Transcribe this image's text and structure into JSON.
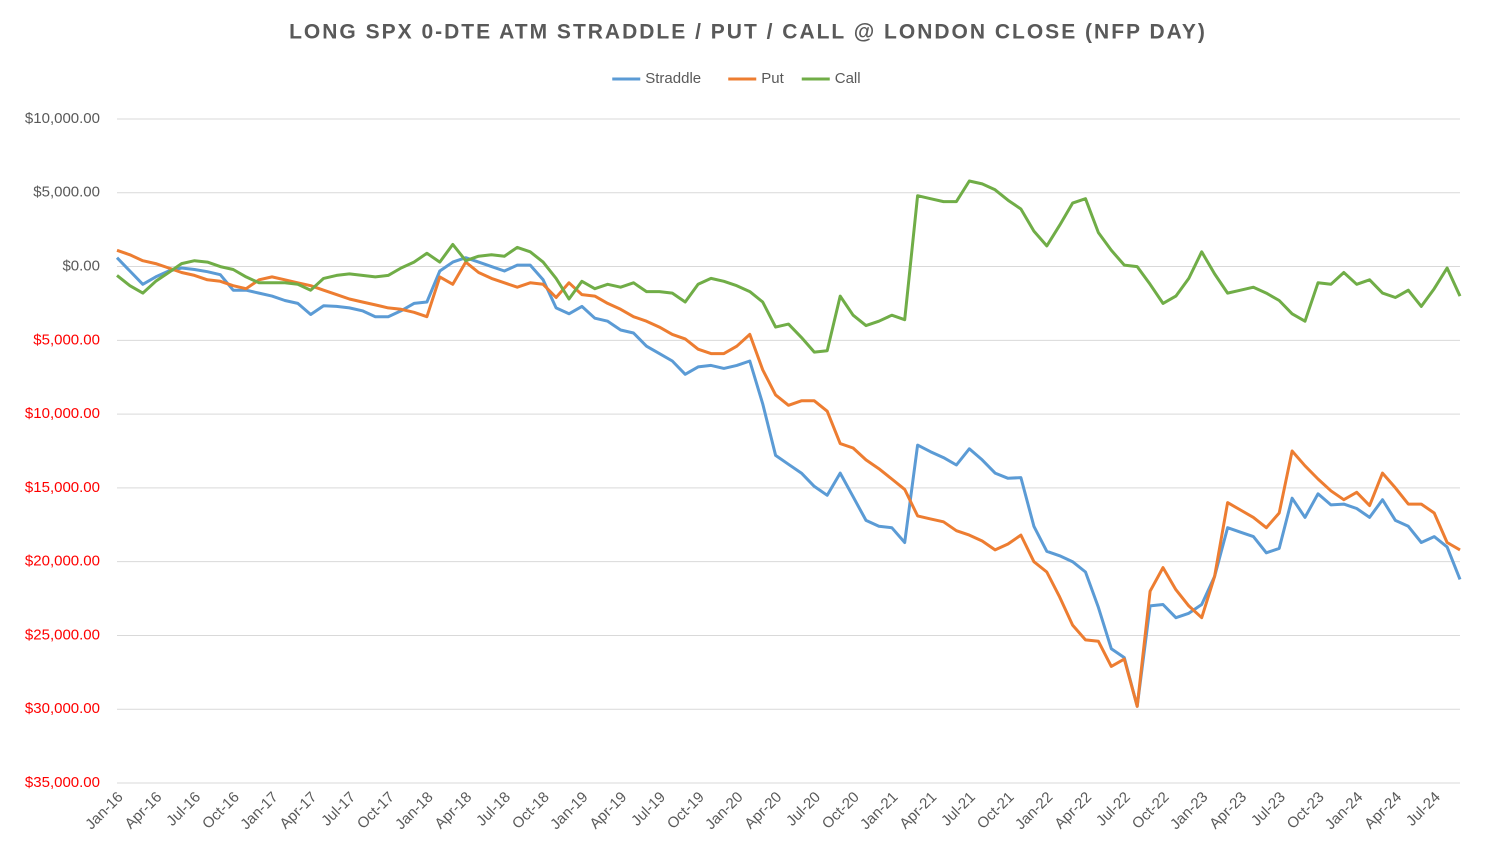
{
  "chart_data": {
    "type": "line",
    "title": "LONG SPX 0-DTE ATM STRADDLE / PUT / CALL @ LONDON CLOSE (NFP DAY)",
    "categories": [
      "Jan-16",
      null,
      null,
      "Apr-16",
      null,
      null,
      "Jul-16",
      null,
      null,
      "Oct-16",
      null,
      null,
      "Jan-17",
      null,
      null,
      "Apr-17",
      null,
      null,
      "Jul-17",
      null,
      null,
      "Oct-17",
      null,
      null,
      "Jan-18",
      null,
      null,
      "Apr-18",
      null,
      null,
      "Jul-18",
      null,
      null,
      "Oct-18",
      null,
      null,
      "Jan-19",
      null,
      null,
      "Apr-19",
      null,
      null,
      "Jul-19",
      null,
      null,
      "Oct-19",
      null,
      null,
      "Jan-20",
      null,
      null,
      "Apr-20",
      null,
      null,
      "Jul-20",
      null,
      null,
      "Oct-20",
      null,
      null,
      "Jan-21",
      null,
      null,
      "Apr-21",
      null,
      null,
      "Jul-21",
      null,
      null,
      "Oct-21",
      null,
      null,
      "Jan-22",
      null,
      null,
      "Apr-22",
      null,
      null,
      "Jul-22",
      null,
      null,
      "Oct-22",
      null,
      null,
      "Jan-23",
      null,
      null,
      "Apr-23",
      null,
      null,
      "Jul-23",
      null,
      null,
      "Oct-23",
      null,
      null,
      "Jan-24",
      null,
      null,
      "Apr-24",
      null,
      null,
      "Jul-24",
      null,
      null
    ],
    "series": [
      {
        "name": "Straddle",
        "color": "#5b9bd5",
        "values": [
          600,
          -300,
          -1200,
          -700,
          -300,
          -100,
          -200,
          -350,
          -550,
          -1600,
          -1600,
          -1800,
          -2000,
          -2300,
          -2500,
          -3250,
          -2650,
          -2700,
          -2800,
          -3000,
          -3400,
          -3400,
          -3000,
          -2500,
          -2400,
          -300,
          300,
          600,
          300,
          0,
          -300,
          100,
          100,
          -900,
          -2800,
          -3200,
          -2700,
          -3500,
          -3700,
          -4300,
          -4500,
          -5400,
          -5900,
          -6400,
          -7300,
          -6800,
          -6700,
          -6900,
          -6700,
          -6400,
          -9300,
          -12800,
          -13400,
          -14000,
          -14900,
          -15500,
          -14000,
          -15600,
          -17200,
          -17600,
          -17700,
          -18700,
          -12100,
          -12550,
          -12950,
          -13450,
          -12350,
          -13100,
          -14000,
          -14350,
          -14300,
          -17600,
          -19300,
          -19600,
          -20000,
          -20700,
          -23100,
          -25900,
          -26500,
          -29800,
          -23000,
          -22900,
          -23800,
          -23500,
          -22900,
          -21000,
          -17700,
          -18000,
          -18300,
          -19400,
          -19100,
          -15700,
          -17000,
          -15400,
          -16150,
          -16100,
          -16400,
          -17000,
          -15800,
          -17200,
          -17600,
          -18700,
          -18300,
          -19000,
          -21200
        ]
      },
      {
        "name": "Put",
        "color": "#ed7d31",
        "values": [
          1100,
          800,
          400,
          200,
          -100,
          -400,
          -600,
          -900,
          -1000,
          -1300,
          -1500,
          -900,
          -700,
          -900,
          -1100,
          -1300,
          -1600,
          -1900,
          -2200,
          -2400,
          -2600,
          -2800,
          -2900,
          -3100,
          -3400,
          -700,
          -1200,
          300,
          -400,
          -800,
          -1100,
          -1400,
          -1100,
          -1200,
          -2100,
          -1100,
          -1900,
          -2000,
          -2500,
          -2900,
          -3400,
          -3700,
          -4100,
          -4600,
          -4900,
          -5600,
          -5900,
          -5900,
          -5400,
          -4600,
          -7000,
          -8700,
          -9400,
          -9100,
          -9100,
          -9800,
          -12000,
          -12300,
          -13100,
          -13700,
          -14400,
          -15100,
          -16900,
          -17100,
          -17300,
          -17900,
          -18200,
          -18600,
          -19200,
          -18800,
          -18200,
          -20000,
          -20700,
          -22400,
          -24300,
          -25300,
          -25400,
          -27100,
          -26600,
          -29800,
          -22000,
          -20400,
          -21900,
          -23000,
          -23800,
          -21000,
          -16000,
          -16500,
          -17000,
          -17700,
          -16700,
          -12500,
          -13500,
          -14400,
          -15200,
          -15800,
          -15300,
          -16200,
          -14000,
          -15000,
          -16100,
          -16100,
          -16700,
          -18700,
          -19200
        ]
      },
      {
        "name": "Call",
        "color": "#70ad47",
        "values": [
          -600,
          -1300,
          -1800,
          -1000,
          -400,
          200,
          400,
          300,
          0,
          -200,
          -700,
          -1100,
          -1100,
          -1100,
          -1200,
          -1600,
          -800,
          -600,
          -500,
          -600,
          -700,
          -600,
          -100,
          300,
          900,
          300,
          1500,
          400,
          700,
          800,
          700,
          1300,
          1000,
          300,
          -800,
          -2200,
          -1000,
          -1500,
          -1200,
          -1400,
          -1100,
          -1700,
          -1700,
          -1800,
          -2400,
          -1200,
          -800,
          -1000,
          -1300,
          -1700,
          -2400,
          -4100,
          -3900,
          -4800,
          -5800,
          -5700,
          -2000,
          -3300,
          -4000,
          -3700,
          -3300,
          -3600,
          4800,
          4600,
          4400,
          4400,
          5800,
          5600,
          5200,
          4500,
          3900,
          2400,
          1400,
          2800,
          4300,
          4600,
          2300,
          1100,
          100,
          0,
          -1200,
          -2500,
          -2000,
          -800,
          1000,
          -500,
          -1800,
          -1600,
          -1400,
          -1800,
          -2300,
          -3200,
          -3700,
          -1100,
          -1200,
          -400,
          -1200,
          -900,
          -1800,
          -2100,
          -1600,
          -2700,
          -1500,
          -100,
          -2000
        ]
      }
    ],
    "ylim": [
      -35000,
      10000
    ],
    "yticks": [
      {
        "value": -35000,
        "label": "$35,000.00"
      },
      {
        "value": -30000,
        "label": "$30,000.00"
      },
      {
        "value": -25000,
        "label": "$25,000.00"
      },
      {
        "value": -20000,
        "label": "$20,000.00"
      },
      {
        "value": -15000,
        "label": "$15,000.00"
      },
      {
        "value": -10000,
        "label": "$10,000.00"
      },
      {
        "value": -5000,
        "label": "$5,000.00"
      },
      {
        "value": 0,
        "label": "$0.00"
      },
      {
        "value": 5000,
        "label": "$5,000.00"
      },
      {
        "value": 10000,
        "label": "$10,000.00"
      }
    ],
    "grid": true,
    "legend": "top",
    "negative_tick_color": "#ff0000"
  }
}
